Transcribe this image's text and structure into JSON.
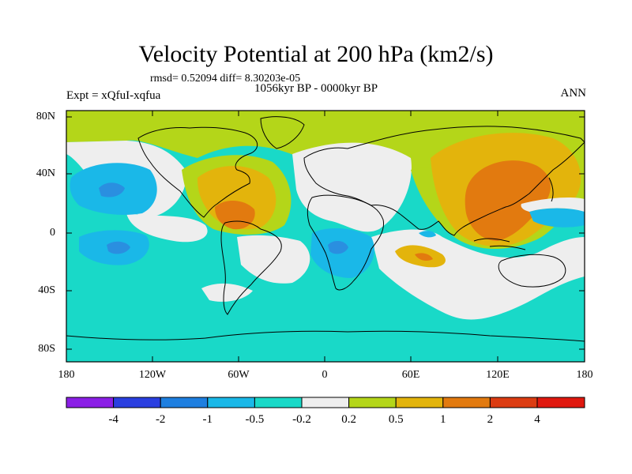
{
  "title": "Velocity Potential at 200 hPa (km2/s)",
  "stats": "rmsd= 0.52094 diff= 8.30203e-05",
  "period": "1056kyr BP - 0000kyr BP",
  "experiment": "Expt = xQfuI-xqfua",
  "season": "ANN",
  "map": {
    "lat_labels": [
      "80N",
      "40N",
      "0",
      "40S",
      "80S"
    ],
    "lon_labels": [
      "180",
      "120W",
      "60W",
      "0",
      "60E",
      "120E",
      "180"
    ]
  },
  "colorbar": {
    "levels": [
      "-4",
      "-2",
      "-1",
      "-0.5",
      "-0.2",
      "0.2",
      "0.5",
      "1",
      "2",
      "4"
    ],
    "colors": [
      "#8b1fe6",
      "#2a3fe0",
      "#1e7fe0",
      "#1ab8e8",
      "#19d9c8",
      "#eeeeee",
      "#b4d619",
      "#e3b40c",
      "#e27a0f",
      "#dc3c12",
      "#e0180f"
    ]
  },
  "palette": {
    "neg_strong": "#2a8fe0",
    "neg_mid": "#1ab8e8",
    "neg_weak": "#19d9c8",
    "neutral": "#eeeeee",
    "pos_weak": "#b4d619",
    "pos_mid": "#e3b40c",
    "pos_strong": "#e27a0f",
    "coast": "#000000"
  }
}
